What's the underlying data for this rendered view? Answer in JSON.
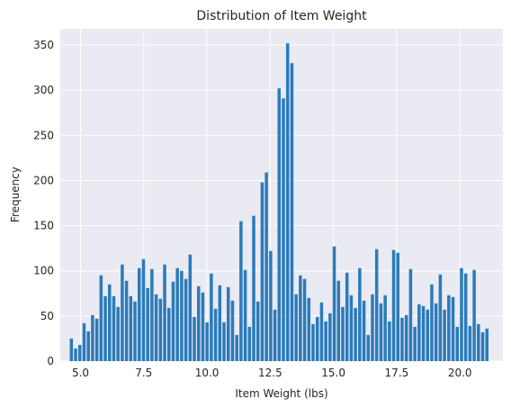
{
  "chart_data": {
    "type": "bar",
    "title": "Distribution of Item Weight",
    "xlabel": "Item Weight (lbs)",
    "ylabel": "Frequency",
    "xlim": [
      4.2,
      21.7
    ],
    "ylim": [
      0,
      368
    ],
    "xticks": [
      5.0,
      7.5,
      10.0,
      12.5,
      15.0,
      17.5,
      20.0
    ],
    "xtick_labels": [
      "5.0",
      "7.5",
      "10.0",
      "12.5",
      "15.0",
      "17.5",
      "20.0"
    ],
    "yticks": [
      0,
      50,
      100,
      150,
      200,
      250,
      300,
      350
    ],
    "ytick_labels": [
      "0",
      "50",
      "100",
      "150",
      "200",
      "250",
      "300",
      "350"
    ],
    "grid": true,
    "bar_color": "#2b7bba",
    "background_color": "#eaeaf2",
    "bin_start": 4.555,
    "bin_width": 0.16765,
    "values": [
      25,
      14,
      18,
      42,
      33,
      51,
      47,
      95,
      72,
      85,
      72,
      60,
      107,
      89,
      72,
      66,
      103,
      113,
      81,
      102,
      74,
      69,
      107,
      59,
      88,
      103,
      100,
      91,
      118,
      49,
      83,
      76,
      43,
      97,
      58,
      84,
      43,
      82,
      67,
      29,
      155,
      101,
      38,
      161,
      66,
      198,
      209,
      122,
      57,
      302,
      291,
      352,
      330,
      74,
      95,
      91,
      70,
      41,
      49,
      65,
      44,
      53,
      127,
      89,
      60,
      98,
      73,
      59,
      103,
      67,
      29,
      74,
      124,
      64,
      73,
      44,
      123,
      120,
      48,
      51,
      102,
      38,
      63,
      61,
      57,
      85,
      64,
      96,
      57,
      73,
      71,
      38,
      103,
      97,
      39,
      101,
      41,
      32,
      36
    ]
  }
}
